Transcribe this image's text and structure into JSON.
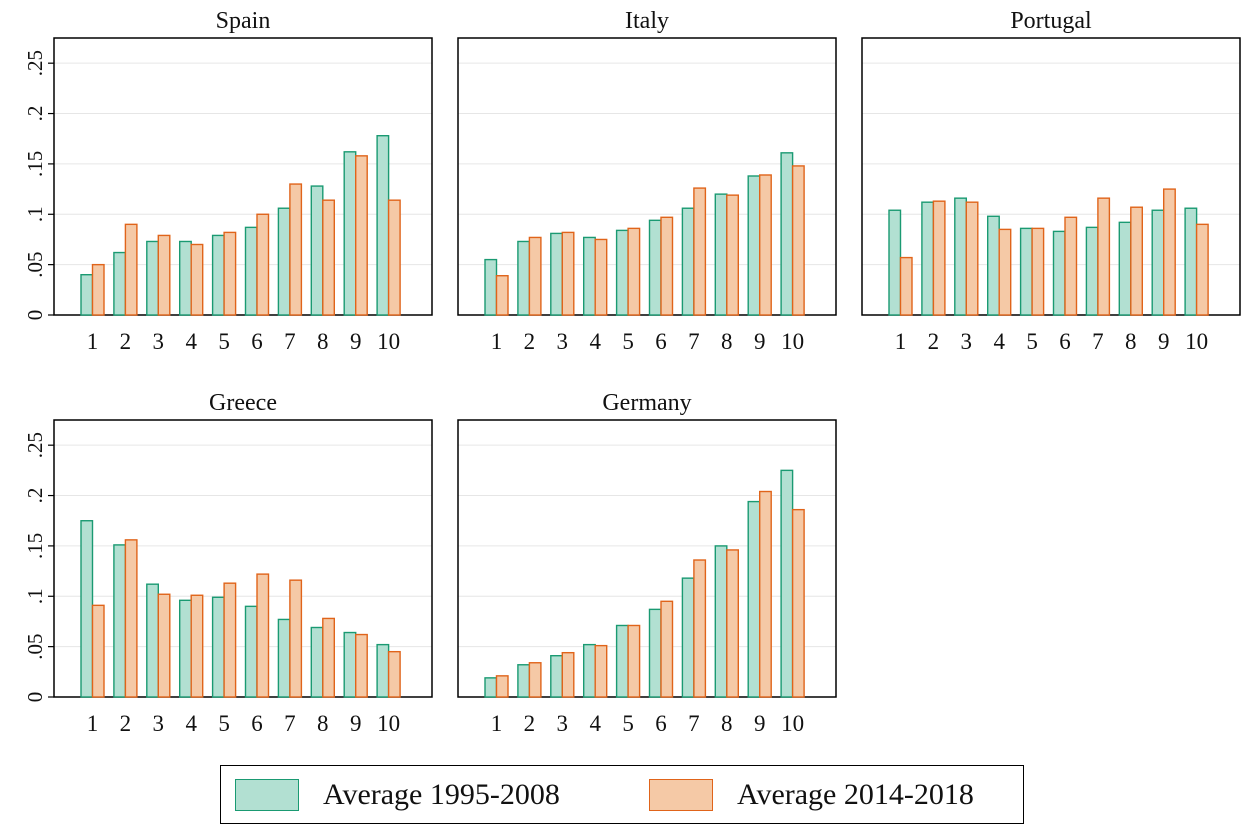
{
  "colors": {
    "series1_fill": "#b2e0d2",
    "series1_stroke": "#1a9a72",
    "series2_fill": "#f5c9a6",
    "series2_stroke": "#e0641a",
    "grid": "#e6e6e6"
  },
  "legend": {
    "items": [
      {
        "label": "Average 1995-2008"
      },
      {
        "label": "Average 2014-2018"
      }
    ]
  },
  "chart_data": [
    {
      "type": "bar",
      "title": "Spain",
      "categories": [
        "1",
        "2",
        "3",
        "4",
        "5",
        "6",
        "7",
        "8",
        "9",
        "10"
      ],
      "ylim": [
        0,
        0.275
      ],
      "yticks": [
        0,
        0.05,
        0.1,
        0.15,
        0.2,
        0.25
      ],
      "ytick_labels": [
        "0",
        ".05",
        ".1",
        ".15",
        ".2",
        ".25"
      ],
      "series": [
        {
          "name": "Average 1995-2008",
          "values": [
            0.04,
            0.062,
            0.073,
            0.073,
            0.079,
            0.087,
            0.106,
            0.128,
            0.162,
            0.178
          ]
        },
        {
          "name": "Average 2014-2018",
          "values": [
            0.05,
            0.09,
            0.079,
            0.07,
            0.082,
            0.1,
            0.13,
            0.114,
            0.158,
            0.114
          ]
        }
      ]
    },
    {
      "type": "bar",
      "title": "Italy",
      "categories": [
        "1",
        "2",
        "3",
        "4",
        "5",
        "6",
        "7",
        "8",
        "9",
        "10"
      ],
      "ylim": [
        0,
        0.275
      ],
      "yticks": [
        0,
        0.05,
        0.1,
        0.15,
        0.2,
        0.25
      ],
      "series": [
        {
          "name": "Average 1995-2008",
          "values": [
            0.055,
            0.073,
            0.081,
            0.077,
            0.084,
            0.094,
            0.106,
            0.12,
            0.138,
            0.161
          ]
        },
        {
          "name": "Average 2014-2018",
          "values": [
            0.039,
            0.077,
            0.082,
            0.075,
            0.086,
            0.097,
            0.126,
            0.119,
            0.139,
            0.148
          ]
        }
      ]
    },
    {
      "type": "bar",
      "title": "Portugal",
      "categories": [
        "1",
        "2",
        "3",
        "4",
        "5",
        "6",
        "7",
        "8",
        "9",
        "10"
      ],
      "ylim": [
        0,
        0.275
      ],
      "yticks": [
        0,
        0.05,
        0.1,
        0.15,
        0.2,
        0.25
      ],
      "series": [
        {
          "name": "Average 1995-2008",
          "values": [
            0.104,
            0.112,
            0.116,
            0.098,
            0.086,
            0.083,
            0.087,
            0.092,
            0.104,
            0.106
          ]
        },
        {
          "name": "Average 2014-2018",
          "values": [
            0.057,
            0.113,
            0.112,
            0.085,
            0.086,
            0.097,
            0.116,
            0.107,
            0.125,
            0.09
          ]
        }
      ]
    },
    {
      "type": "bar",
      "title": "Greece",
      "categories": [
        "1",
        "2",
        "3",
        "4",
        "5",
        "6",
        "7",
        "8",
        "9",
        "10"
      ],
      "ylim": [
        0,
        0.275
      ],
      "yticks": [
        0,
        0.05,
        0.1,
        0.15,
        0.2,
        0.25
      ],
      "ytick_labels": [
        "0",
        ".05",
        ".1",
        ".15",
        ".2",
        ".25"
      ],
      "series": [
        {
          "name": "Average 1995-2008",
          "values": [
            0.175,
            0.151,
            0.112,
            0.096,
            0.099,
            0.09,
            0.077,
            0.069,
            0.064,
            0.052
          ]
        },
        {
          "name": "Average 2014-2018",
          "values": [
            0.091,
            0.156,
            0.102,
            0.101,
            0.113,
            0.122,
            0.116,
            0.078,
            0.062,
            0.045
          ]
        }
      ]
    },
    {
      "type": "bar",
      "title": "Germany",
      "categories": [
        "1",
        "2",
        "3",
        "4",
        "5",
        "6",
        "7",
        "8",
        "9",
        "10"
      ],
      "ylim": [
        0,
        0.275
      ],
      "yticks": [
        0,
        0.05,
        0.1,
        0.15,
        0.2,
        0.25
      ],
      "series": [
        {
          "name": "Average 1995-2008",
          "values": [
            0.019,
            0.032,
            0.041,
            0.052,
            0.071,
            0.087,
            0.118,
            0.15,
            0.194,
            0.225
          ]
        },
        {
          "name": "Average 2014-2018",
          "values": [
            0.021,
            0.034,
            0.044,
            0.051,
            0.071,
            0.095,
            0.136,
            0.146,
            0.204,
            0.186
          ]
        }
      ]
    }
  ]
}
